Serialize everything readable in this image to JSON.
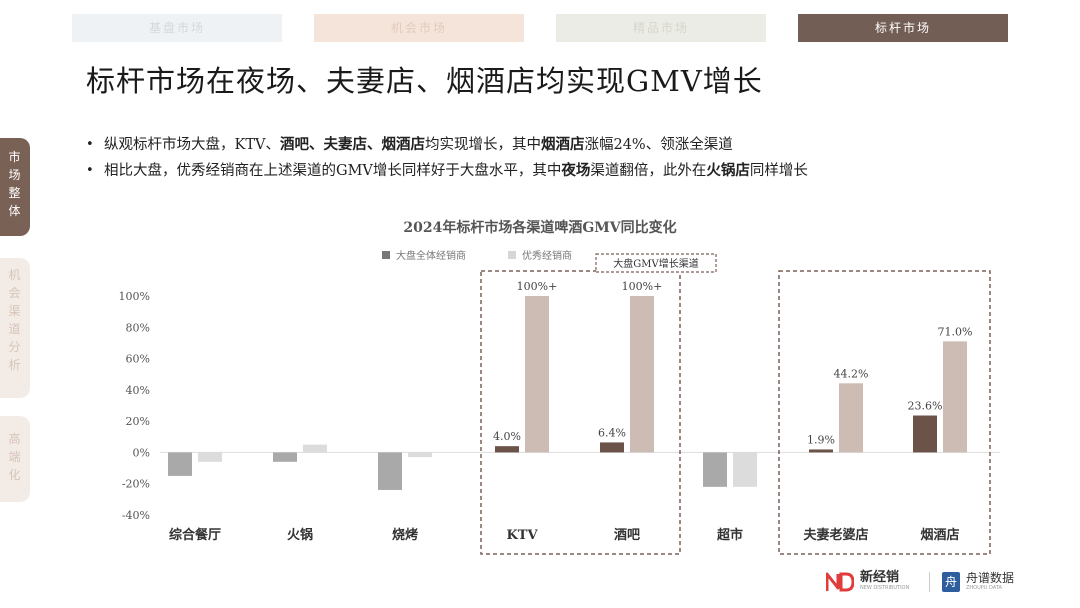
{
  "tabs": [
    "基盘市场",
    "机会市场",
    "精品市场",
    "标杆市场"
  ],
  "side_tabs": [
    "市场整体",
    "机会渠道分析",
    "高端化"
  ],
  "title": "标杆市场在夜场、夫妻店、烟酒店均实现GMV增长",
  "bullets": [
    [
      {
        "t": "纵观标杆市场大盘，KTV、",
        "b": false
      },
      {
        "t": "酒吧、夫妻店、烟酒店",
        "b": true
      },
      {
        "t": "均实现增长，其中",
        "b": false
      },
      {
        "t": "烟酒店",
        "b": true
      },
      {
        "t": "涨幅24%、领涨全渠道",
        "b": false
      }
    ],
    [
      {
        "t": "相比大盘，优秀经销商在上述渠道的GMV增长同样好于大盘水平，其中",
        "b": false
      },
      {
        "t": "夜场",
        "b": true
      },
      {
        "t": "渠道翻倍，此外在",
        "b": false
      },
      {
        "t": "火锅店",
        "b": true
      },
      {
        "t": "同样增长",
        "b": false
      }
    ]
  ],
  "chart_data": {
    "type": "bar",
    "title": "2024年标杆市场各渠道啤酒GMV同比变化",
    "categories": [
      "综合餐厅",
      "火锅",
      "烧烤",
      "KTV",
      "酒吧",
      "超市",
      "夫妻老婆店",
      "烟酒店"
    ],
    "series": [
      {
        "name": "大盘全体经销商",
        "color": "#a9a9a9",
        "highlight_color": "#6b5349",
        "values": [
          -15,
          -6,
          -24,
          4.0,
          6.4,
          -22,
          1.9,
          23.6
        ],
        "labels": [
          "",
          "",
          "",
          "4.0%",
          "6.4%",
          "",
          "1.9%",
          "23.6%"
        ]
      },
      {
        "name": "优秀经销商",
        "color": "#dcdcdc",
        "highlight_color": "#cdbcb3",
        "values": [
          -6,
          5,
          -3,
          100,
          100,
          -22,
          44.2,
          71.0
        ],
        "labels": [
          "",
          "",
          "",
          "100%+",
          "100%+",
          "",
          "44.2%",
          "71.0%"
        ]
      }
    ],
    "highlighted_categories": [
      "KTV",
      "酒吧",
      "夫妻老婆店",
      "烟酒店"
    ],
    "ylim": [
      -40,
      100
    ],
    "yticks": [
      -40,
      -20,
      0,
      20,
      40,
      60,
      80,
      100
    ],
    "ytick_labels": [
      "-40%",
      "-20%",
      "0%",
      "20%",
      "40%",
      "60%",
      "80%",
      "100%"
    ],
    "annotation": "大盘GMV增长渠道",
    "grid": false,
    "legend": "top-left"
  },
  "logos": {
    "brand1": "新经销",
    "brand1_sub": "NEW DISTRIBUTION",
    "brand2": "舟谱数据",
    "brand2_sub": "ZHOUPU DATA"
  }
}
